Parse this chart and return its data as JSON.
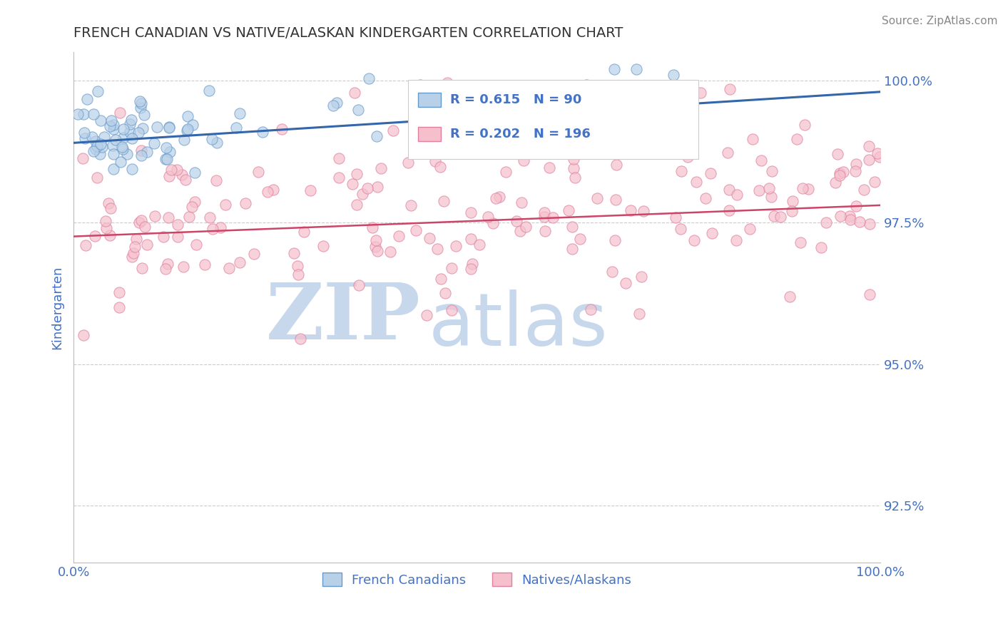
{
  "title": "FRENCH CANADIAN VS NATIVE/ALASKAN KINDERGARTEN CORRELATION CHART",
  "source_text": "Source: ZipAtlas.com",
  "ylabel": "Kindergarten",
  "xlim": [
    0.0,
    1.0
  ],
  "ylim": [
    0.915,
    1.005
  ],
  "yticks": [
    0.925,
    0.95,
    0.975,
    1.0
  ],
  "ytick_labels": [
    "92.5%",
    "95.0%",
    "97.5%",
    "100.0%"
  ],
  "xticks": [
    0.0,
    1.0
  ],
  "xtick_labels": [
    "0.0%",
    "100.0%"
  ],
  "blue_R": 0.615,
  "blue_N": 90,
  "pink_R": 0.202,
  "pink_N": 196,
  "blue_color": "#b8d0e8",
  "blue_edge_color": "#6699cc",
  "blue_line_color": "#3366aa",
  "pink_color": "#f5c0cc",
  "pink_edge_color": "#e080a0",
  "pink_line_color": "#cc4466",
  "legend_label_blue": "French Canadians",
  "legend_label_pink": "Natives/Alaskans",
  "marker_size": 120,
  "background_color": "#ffffff",
  "grid_color": "#cccccc",
  "watermark_zip": "ZIP",
  "watermark_atlas": "atlas",
  "watermark_color": "#c8d8ec",
  "title_color": "#333333",
  "axis_label_color": "#4472c4",
  "tick_label_color": "#4472c4",
  "annotation_color": "#4472c4",
  "seed": 42,
  "blue_line_start_y": 0.989,
  "blue_line_end_y": 0.998,
  "pink_line_start_y": 0.9725,
  "pink_line_end_y": 0.978
}
